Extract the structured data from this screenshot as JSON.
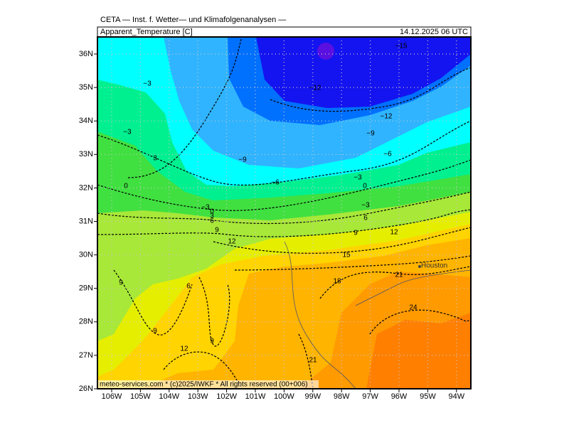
{
  "header": {
    "institute": "CETA — Inst. f. Wetter— und Klimafolgenanalysen —",
    "variable": "Apparent_Temperature [C]",
    "valid_time": "14.12.2025 06 UTC"
  },
  "lat_labels": [
    "36N",
    "35N",
    "34N",
    "33N",
    "32N",
    "31N",
    "30N",
    "29N",
    "28N",
    "27N",
    "26N"
  ],
  "lon_labels": [
    "106W",
    "105W",
    "104W",
    "103W",
    "102W",
    "101W",
    "100W",
    "99W",
    "98W",
    "97W",
    "96W",
    "95W",
    "94W"
  ],
  "contour_labels": [
    "−15",
    "−3",
    "−12",
    "−12",
    "−3",
    "−9",
    "−9",
    "−6",
    "3",
    "−3",
    "−6",
    "0",
    "0",
    "−3",
    "0",
    "3",
    "6",
    "−3",
    "6",
    "9",
    "9",
    "12",
    "12",
    "15",
    "21",
    "18",
    "9",
    "6",
    "24",
    "9",
    "9",
    "12",
    "21"
  ],
  "city": "Houston",
  "footer": "meteo-services.com * (c)2025/IWKF * All rights reserved (00+006)"
}
